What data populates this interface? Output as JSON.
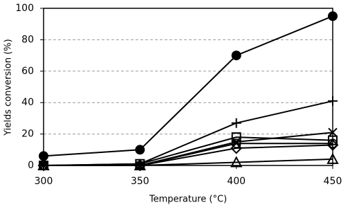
{
  "chart_data": {
    "type": "line",
    "x_label": "Temperature (°C)",
    "y_label": "Yields conversion (%)",
    "x": [
      300,
      350,
      400,
      450
    ],
    "xlim": [
      300,
      450
    ],
    "xticks": [
      300,
      350,
      400,
      450
    ],
    "ylim": [
      0,
      100
    ],
    "yticks": [
      0,
      20,
      40,
      60,
      80,
      100
    ],
    "grid": true,
    "series": [
      {
        "marker": "filled-circle",
        "color": "#000000",
        "values": [
          6,
          10,
          70,
          95
        ]
      },
      {
        "marker": "plus",
        "color": "#000000",
        "values": [
          0,
          1,
          27,
          41
        ]
      },
      {
        "marker": "cross",
        "color": "#000000",
        "values": [
          0,
          0,
          15,
          21
        ]
      },
      {
        "marker": "square",
        "color": "#000000",
        "values": [
          0,
          1,
          18,
          16
        ]
      },
      {
        "marker": "open-circle",
        "color": "#000000",
        "values": [
          0,
          0,
          14,
          14
        ]
      },
      {
        "marker": "diamond",
        "color": "#000000",
        "values": [
          0,
          0,
          11,
          13
        ]
      },
      {
        "marker": "triangle",
        "color": "#000000",
        "values": [
          0,
          0,
          2,
          4
        ]
      }
    ]
  }
}
